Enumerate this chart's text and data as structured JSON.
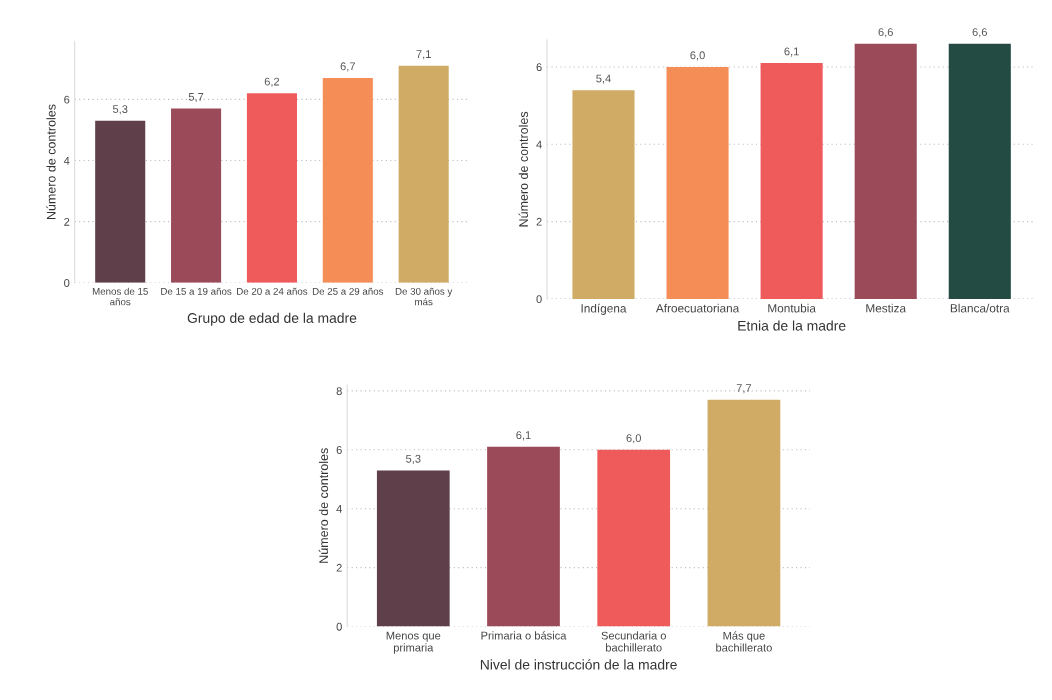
{
  "chart_data": [
    {
      "type": "bar",
      "xlabel": "Grupo de edad de la madre",
      "ylabel": "Número de controles",
      "categories": [
        "Menos de 15\naños",
        "De 15 a 19 años",
        "De 20 a 24 años",
        "De 25 a 29 años",
        "De 30 años y\nmás"
      ],
      "values": [
        5.3,
        5.7,
        6.2,
        6.7,
        7.1
      ],
      "value_labels": [
        "5,3",
        "5,7",
        "6,2",
        "6,7",
        "7,1"
      ],
      "colors": [
        "#5e3f4a",
        "#9b4a5a",
        "#ef5a5b",
        "#f58d56",
        "#cfab65"
      ],
      "ylim": [
        0,
        7.9
      ],
      "yticks": [
        0,
        2,
        4,
        6
      ],
      "grid": "y"
    },
    {
      "type": "bar",
      "xlabel": "Etnia de la madre",
      "ylabel": "Número de controles",
      "categories": [
        "Indígena",
        "Afroecuatoriana",
        "Montubia",
        "Mestiza",
        "Blanca/otra"
      ],
      "values": [
        5.4,
        6.0,
        6.1,
        6.6,
        6.6
      ],
      "value_labels": [
        "5,4",
        "6,0",
        "6,1",
        "6,6",
        "6,6"
      ],
      "colors": [
        "#cfab65",
        "#f58d56",
        "#ef5a5b",
        "#9b4a5a",
        "#244a44"
      ],
      "ylim": [
        0,
        6.7
      ],
      "yticks": [
        0,
        2,
        4,
        6
      ],
      "grid": "y"
    },
    {
      "type": "bar",
      "xlabel": "Nivel de instrucción de la madre",
      "ylabel": "Número de controles",
      "categories": [
        "Menos que\nprimaria",
        "Primaria o básica",
        "Secundaria o\nbachillerato",
        "Más que\nbachillerato"
      ],
      "values": [
        5.3,
        6.1,
        6.0,
        7.7
      ],
      "value_labels": [
        "5,3",
        "6,1",
        "6,0",
        "7,7"
      ],
      "colors": [
        "#5e3f4a",
        "#9b4a5a",
        "#ef5a5b",
        "#cfab65"
      ],
      "ylim": [
        0,
        8.2
      ],
      "yticks": [
        0,
        2,
        4,
        6,
        8
      ],
      "grid": "y"
    }
  ]
}
